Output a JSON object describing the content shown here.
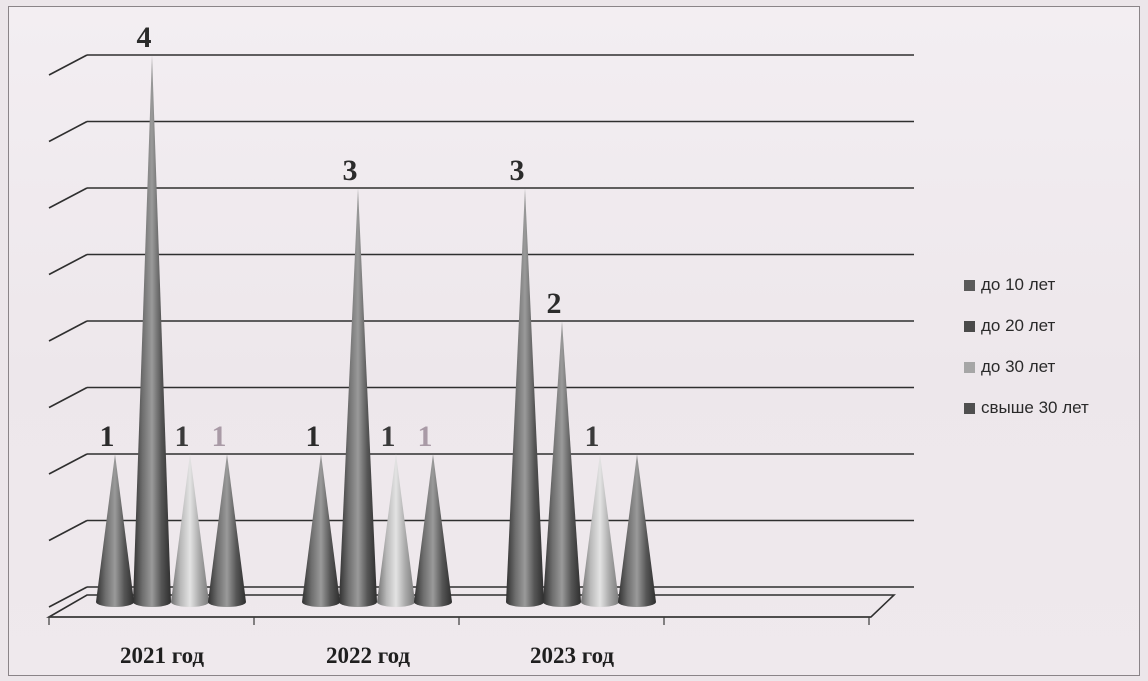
{
  "chart_data": {
    "type": "bar",
    "title": "",
    "xlabel": "",
    "ylabel": "",
    "categories": [
      "2021 год",
      "2022 год",
      "2023 год"
    ],
    "series": [
      {
        "name": "до 10 лет",
        "values": [
          1,
          1,
          3
        ],
        "color": "#5a5a5a"
      },
      {
        "name": "до 20 лет",
        "values": [
          4,
          3,
          2
        ],
        "color": "#4a4a4a"
      },
      {
        "name": "до 30 лет",
        "values": [
          1,
          1,
          1
        ],
        "color": "#a6a6a6"
      },
      {
        "name": "свыше 30 лет",
        "values": [
          1,
          1,
          1
        ],
        "color": "#4f4f4f"
      }
    ],
    "data_labels": [
      [
        "1",
        "1",
        "3"
      ],
      [
        "4",
        "3",
        "2"
      ],
      [
        "1",
        "1",
        "1"
      ],
      [
        "1",
        "1",
        ""
      ]
    ],
    "label_colors": [
      "#2b2b2b",
      "#2b2b2b",
      "#3a3a3a",
      "#a99aa6"
    ],
    "ylim": [
      0,
      4
    ],
    "bar_shape": "cone",
    "grid": true,
    "legend_position": "right"
  }
}
